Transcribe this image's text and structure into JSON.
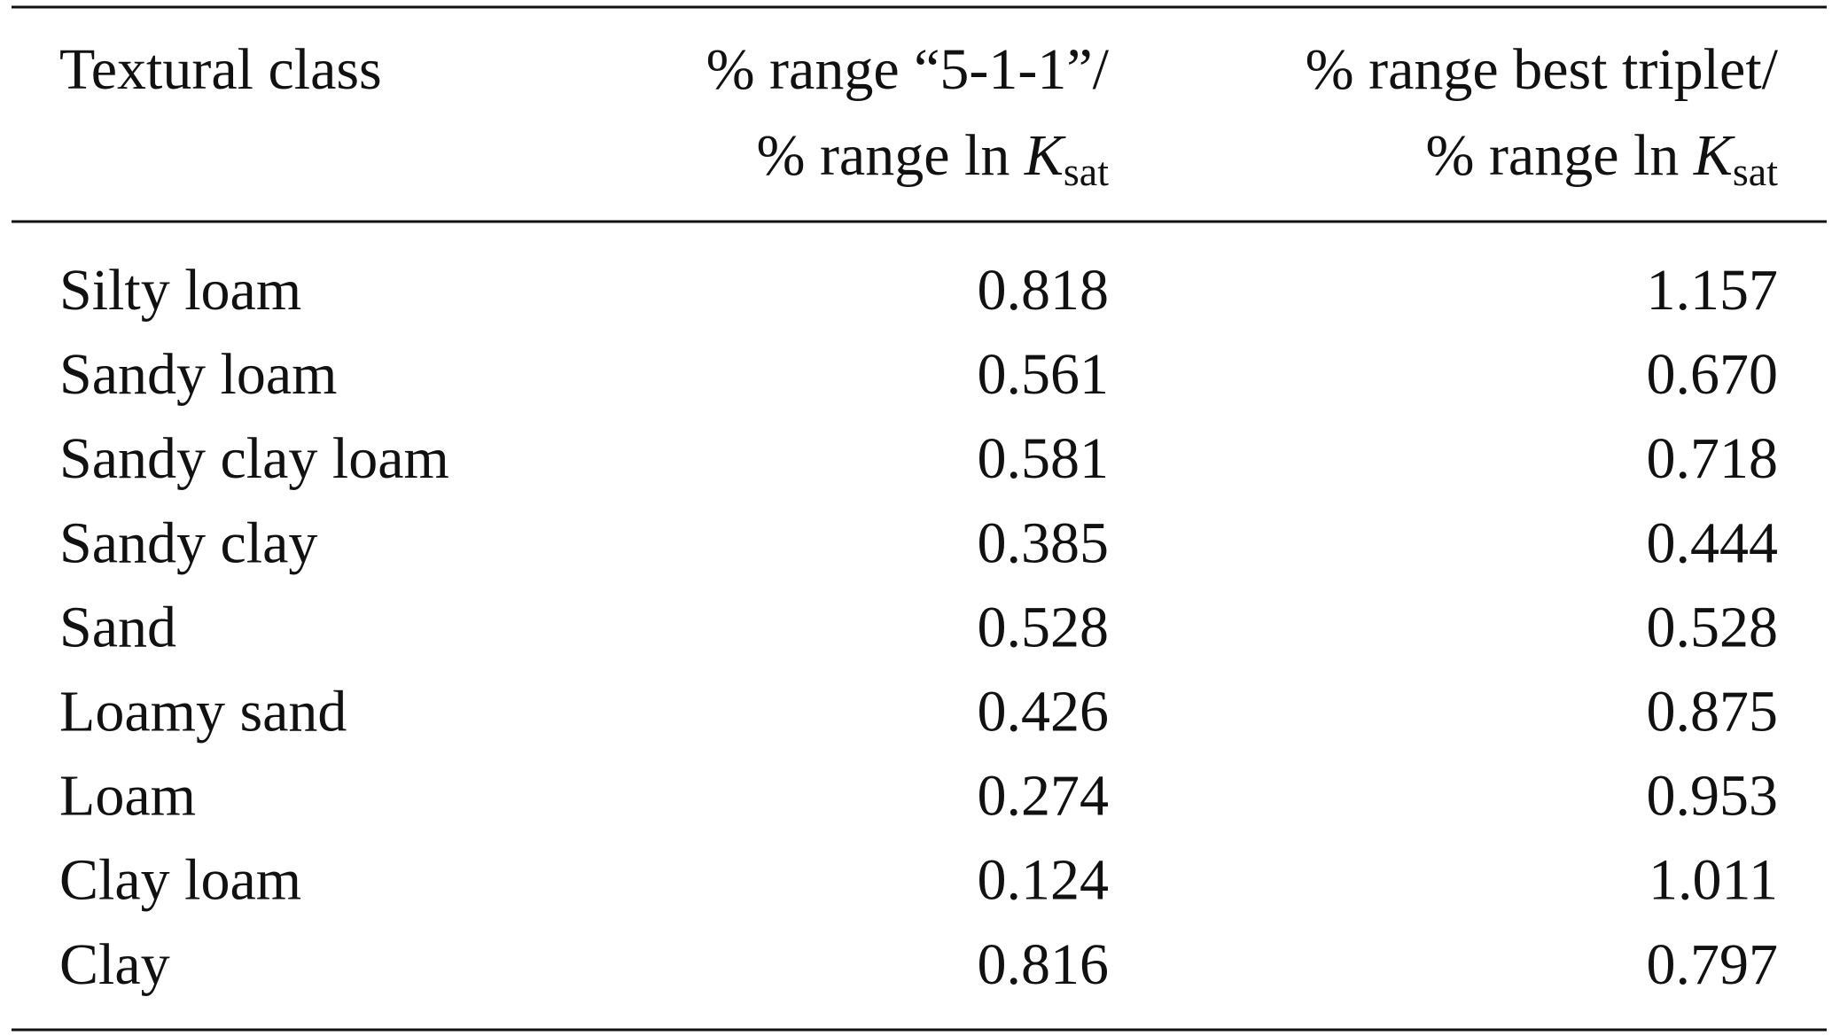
{
  "table": {
    "header": [
      {
        "line1": "Textural class"
      },
      {
        "line1": "% range “5-1-1”/",
        "line2": "% range ln ",
        "symbol": "K",
        "subscript": "sat"
      },
      {
        "line1": "% range best triplet/",
        "line2": "% range ln ",
        "symbol": "K",
        "subscript": "sat"
      }
    ],
    "rows": [
      [
        "Silty loam",
        "0.818",
        "1.157"
      ],
      [
        "Sandy loam",
        "0.561",
        "0.670"
      ],
      [
        "Sandy clay loam",
        "0.581",
        "0.718"
      ],
      [
        "Sandy clay",
        "0.385",
        "0.444"
      ],
      [
        "Sand",
        "0.528",
        "0.528"
      ],
      [
        "Loamy sand",
        "0.426",
        "0.875"
      ],
      [
        "Loam",
        "0.274",
        "0.953"
      ],
      [
        "Clay loam",
        "0.124",
        "1.011"
      ],
      [
        "Clay",
        "0.816",
        "0.797"
      ]
    ]
  }
}
